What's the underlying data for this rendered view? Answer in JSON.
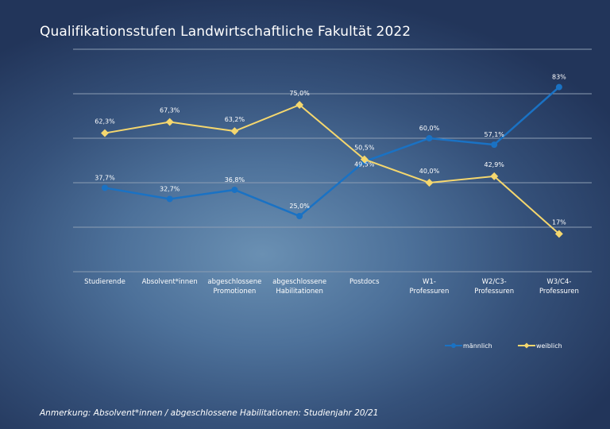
{
  "title": "Qualifikationsstufen Landwirtschaftliche Fakultät 2022",
  "note": "Anmerkung: Absolvent*innen / abgeschlossene Habilitationen: Studienjahr 20/21",
  "chart_data": {
    "type": "line",
    "title": "Qualifikationsstufen Landwirtschaftliche Fakultät 2022",
    "categories": [
      [
        "Studierende"
      ],
      [
        "Absolvent*innen"
      ],
      [
        "abgeschlossene",
        "Promotionen"
      ],
      [
        "abgeschlossene",
        "Habilitationen"
      ],
      [
        "Postdocs"
      ],
      [
        "W1-",
        "Professuren"
      ],
      [
        "W2/C3-",
        "Professuren"
      ],
      [
        "W3/C4-",
        "Professuren"
      ]
    ],
    "ylim": [
      0,
      100
    ],
    "grid": true,
    "legend": "bottom-right",
    "series": [
      {
        "name": "männlich",
        "color": "#1a72c4",
        "marker": "circle",
        "values": [
          37.7,
          32.7,
          36.8,
          25.0,
          49.5,
          60.0,
          57.1,
          83
        ],
        "labels": [
          "37,7%",
          "32,7%",
          "36,8%",
          "25,0%",
          "49,5%",
          "60,0%",
          "57,1%",
          "83%"
        ]
      },
      {
        "name": "weiblich",
        "color": "#f5d76e",
        "marker": "diamond",
        "values": [
          62.3,
          67.3,
          63.2,
          75.0,
          50.5,
          40.0,
          42.9,
          17
        ],
        "labels": [
          "62,3%",
          "67,3%",
          "63,2%",
          "75,0%",
          "50,5%",
          "40,0%",
          "42,9%",
          "17%"
        ]
      }
    ]
  }
}
